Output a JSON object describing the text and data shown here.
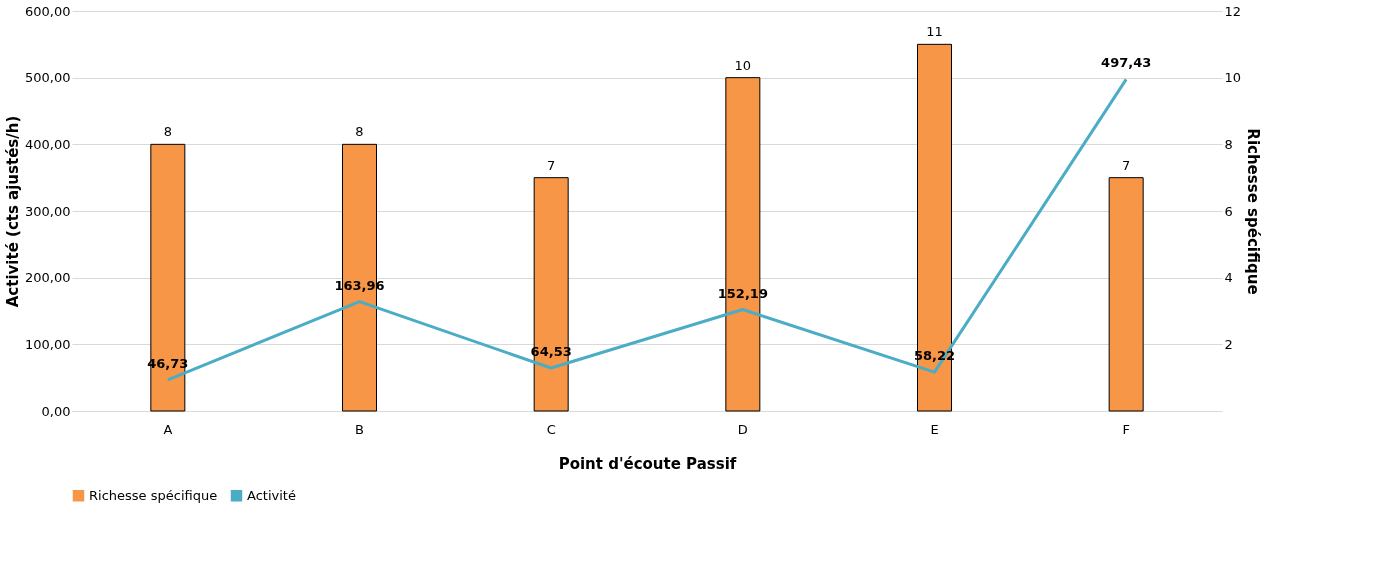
{
  "chart_data": {
    "type": "bar",
    "xlabel": "Point d'écoute Passif",
    "ylabel": "Activité (cts ajustés/h)",
    "y2label": "Richesse spécifique",
    "categories": [
      "A",
      "B",
      "C",
      "D",
      "E",
      "F"
    ],
    "series": [
      {
        "name": "Richesse spécifique",
        "axis": "y2",
        "color": "#f79646",
        "values": [
          8,
          8,
          7,
          10,
          11,
          7
        ],
        "value_labels": [
          "8",
          "8",
          "7",
          "10",
          "11",
          "7"
        ]
      },
      {
        "name": "Activité",
        "type": "line",
        "color": "#4bacc6",
        "values": [
          46.73,
          163.96,
          64.53,
          152.19,
          58.22,
          497.43
        ],
        "value_labels": [
          "46,73",
          "163,96",
          "64,53",
          "152,19",
          "58,22",
          "497,43"
        ]
      }
    ],
    "ylim": [
      0,
      600
    ],
    "yticks": [
      {
        "value": 0,
        "label": "0,00"
      },
      {
        "value": 100,
        "label": "100,00"
      },
      {
        "value": 200,
        "label": "200,00"
      },
      {
        "value": 300,
        "label": "300,00"
      },
      {
        "value": 400,
        "label": "400,00"
      },
      {
        "value": 500,
        "label": "500,00"
      },
      {
        "value": 600,
        "label": "600,00"
      }
    ],
    "y2lim": [
      0,
      12
    ],
    "y2ticks": [
      2,
      4,
      6,
      8,
      10,
      12
    ],
    "grid": "y",
    "legend": "bottom",
    "marker": "none",
    "line_style": "solid"
  }
}
